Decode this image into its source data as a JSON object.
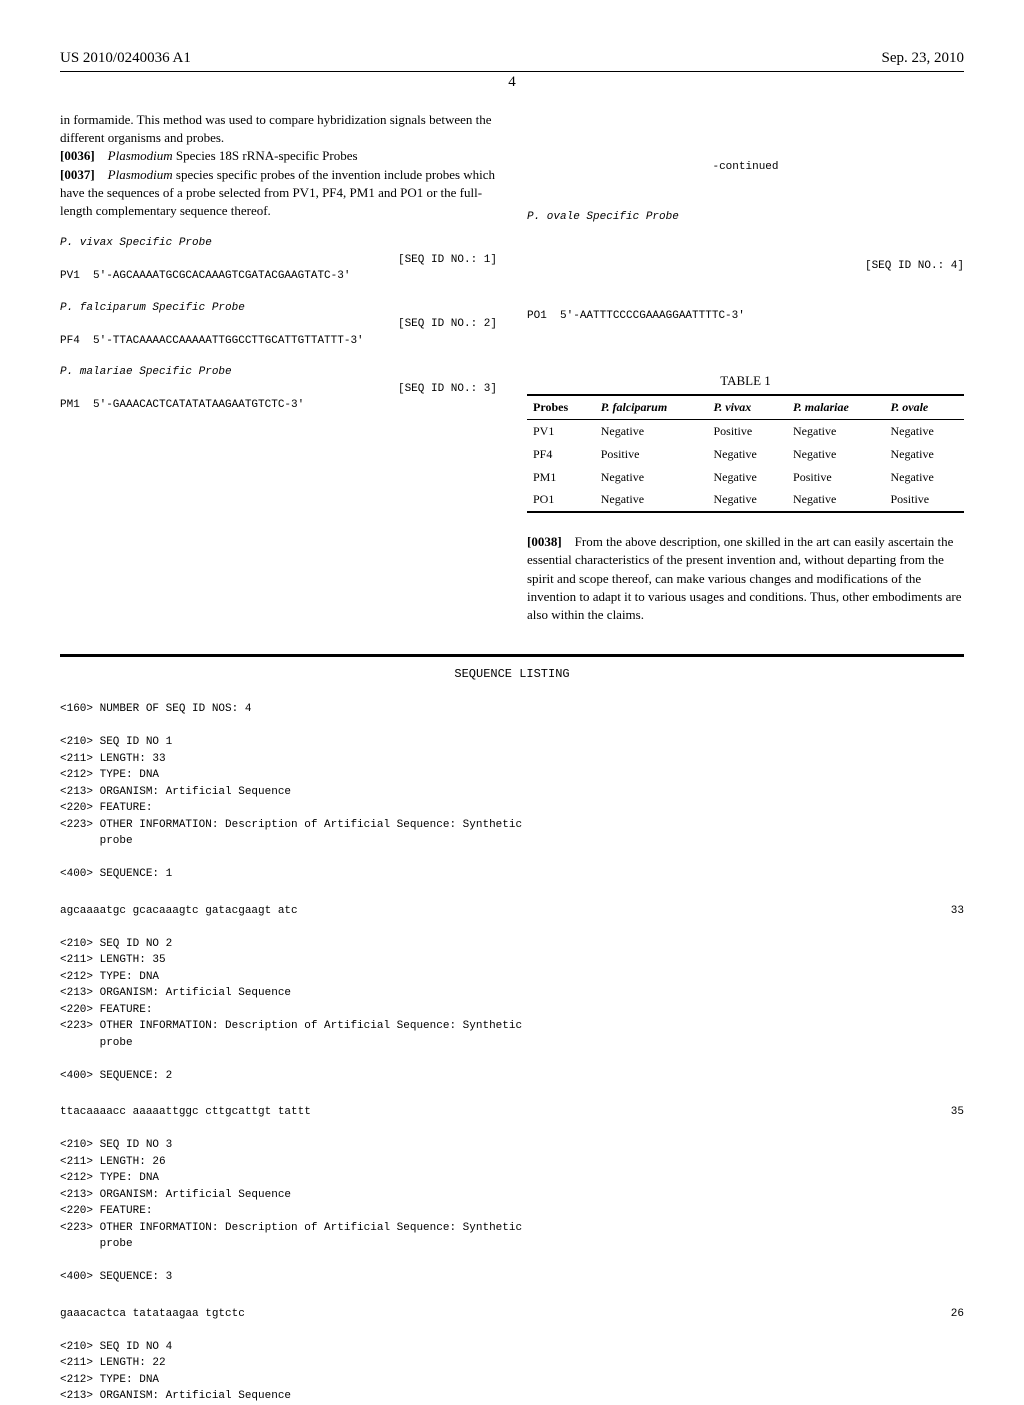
{
  "header": {
    "doc_number": "US 2010/0240036 A1",
    "date": "Sep. 23, 2010",
    "page_number": "4"
  },
  "left_column": {
    "intro_text": "in formamide. This method was used to compare hybridization signals between the different organisms and probes.",
    "para_0036_num": "[0036]",
    "para_0036_text": " Species 18S rRNA-specific Probes",
    "para_0036_italic": "Plasmodium",
    "para_0037_num": "[0037]",
    "para_0037_italic": "Plasmodium",
    "para_0037_text": " species specific probes of the invention include probes which have the sequences of a probe selected from PV1, PF4, PM1 and PO1 or the full-length complementary sequence thereof.",
    "probes": [
      {
        "title": "P. vivax Specific Probe",
        "seq_label": "[SEQ ID NO.: 1]",
        "id": "PV1",
        "sequence": "5'-AGCAAAATGCGCACAAAGTCGATACGAAGTATC-3'"
      },
      {
        "title": "P. falciparum Specific Probe",
        "seq_label": "[SEQ ID NO.: 2]",
        "id": "PF4",
        "sequence": "5'-TTACAAAACCAAAAATTGGCCTTGCATTGTTATTT-3'"
      },
      {
        "title": "P. malariae Specific Probe",
        "seq_label": "[SEQ ID NO.: 3]",
        "id": "PM1",
        "sequence": "5'-GAAACACTCATATATAAGAATGTCTC-3'"
      }
    ]
  },
  "right_column": {
    "continued_label": "-continued",
    "probe": {
      "title": "P. ovale Specific Probe",
      "seq_label": "[SEQ ID NO.: 4]",
      "id": "PO1",
      "sequence": "5'-AATTTCCCCGAAAGGAATTTTC-3'"
    },
    "table": {
      "title": "TABLE 1",
      "columns": [
        "Probes",
        "P. falciparum",
        "P. vivax",
        "P. malariae",
        "P. ovale"
      ],
      "rows": [
        [
          "PV1",
          "Negative",
          "Positive",
          "Negative",
          "Negative"
        ],
        [
          "PF4",
          "Positive",
          "Negative",
          "Negative",
          "Negative"
        ],
        [
          "PM1",
          "Negative",
          "Negative",
          "Positive",
          "Negative"
        ],
        [
          "PO1",
          "Negative",
          "Negative",
          "Negative",
          "Positive"
        ]
      ]
    },
    "para_0038_num": "[0038]",
    "para_0038_text": "From the above description, one skilled in the art can easily ascertain the essential characteristics of the present invention and, without departing from the spirit and scope thereof, can make various changes and modifications of the invention to adapt it to various usages and conditions. Thus, other embodiments are also within the claims."
  },
  "sequence_listing": {
    "title": "SEQUENCE LISTING",
    "num_seq_label": "<160> NUMBER OF SEQ ID NOS: 4",
    "entries": [
      {
        "lines": [
          "<210> SEQ ID NO 1",
          "<211> LENGTH: 33",
          "<212> TYPE: DNA",
          "<213> ORGANISM: Artificial Sequence",
          "<220> FEATURE:",
          "<223> OTHER INFORMATION: Description of Artificial Sequence: Synthetic",
          "      probe",
          "",
          "<400> SEQUENCE: 1"
        ],
        "seq": "agcaaaatgc gcacaaagtc gatacgaagt atc",
        "len": "33"
      },
      {
        "lines": [
          "<210> SEQ ID NO 2",
          "<211> LENGTH: 35",
          "<212> TYPE: DNA",
          "<213> ORGANISM: Artificial Sequence",
          "<220> FEATURE:",
          "<223> OTHER INFORMATION: Description of Artificial Sequence: Synthetic",
          "      probe",
          "",
          "<400> SEQUENCE: 2"
        ],
        "seq": "ttacaaaacc aaaaattggc cttgcattgt tattt",
        "len": "35"
      },
      {
        "lines": [
          "<210> SEQ ID NO 3",
          "<211> LENGTH: 26",
          "<212> TYPE: DNA",
          "<213> ORGANISM: Artificial Sequence",
          "<220> FEATURE:",
          "<223> OTHER INFORMATION: Description of Artificial Sequence: Synthetic",
          "      probe",
          "",
          "<400> SEQUENCE: 3"
        ],
        "seq": "gaaacactca tatataagaa tgtctc",
        "len": "26"
      },
      {
        "lines": [
          "<210> SEQ ID NO 4",
          "<211> LENGTH: 22",
          "<212> TYPE: DNA",
          "<213> ORGANISM: Artificial Sequence"
        ],
        "seq": "",
        "len": ""
      }
    ]
  }
}
